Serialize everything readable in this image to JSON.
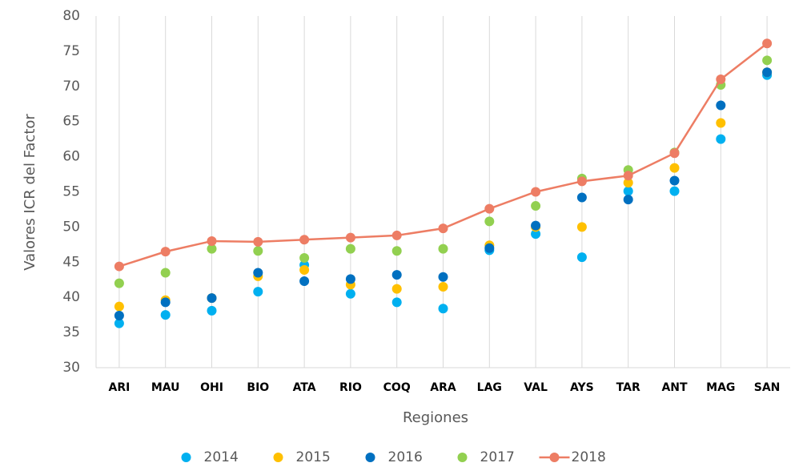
{
  "chart_data": {
    "type": "line",
    "x_label": "Regiones",
    "y_label": "Valores ICR del Factor",
    "categories": [
      "ARI",
      "MAU",
      "OHI",
      "BIO",
      "ATA",
      "RIO",
      "COQ",
      "ARA",
      "LAG",
      "VAL",
      "AYS",
      "TAR",
      "ANT",
      "MAG",
      "SAN"
    ],
    "ylim": [
      30,
      80
    ],
    "yticks": [
      30,
      35,
      40,
      45,
      50,
      55,
      60,
      65,
      70,
      75,
      80
    ],
    "grid": "vertical",
    "legend": "bottom",
    "series": [
      {
        "name": "2014",
        "color": "#00b0f0",
        "line": false,
        "values": [
          36.3,
          37.5,
          38.1,
          40.8,
          44.6,
          40.5,
          39.3,
          38.4,
          46.7,
          49.0,
          45.7,
          55.1,
          55.1,
          62.5,
          71.6
        ]
      },
      {
        "name": "2015",
        "color": "#ffc000",
        "line": false,
        "values": [
          38.7,
          39.6,
          39.9,
          43.0,
          43.9,
          41.8,
          41.2,
          41.5,
          47.4,
          50.0,
          50.0,
          56.3,
          58.4,
          64.8,
          72.0
        ]
      },
      {
        "name": "2016",
        "color": "#0070c0",
        "line": false,
        "values": [
          37.4,
          39.3,
          39.9,
          43.5,
          42.3,
          42.6,
          43.2,
          42.9,
          47.0,
          50.2,
          54.2,
          53.9,
          56.6,
          67.3,
          72.0
        ]
      },
      {
        "name": "2017",
        "color": "#92d050",
        "line": false,
        "values": [
          42.0,
          43.5,
          46.9,
          46.6,
          45.6,
          46.9,
          46.6,
          46.9,
          50.8,
          53.0,
          56.9,
          58.1,
          60.6,
          70.2,
          73.7
        ]
      },
      {
        "name": "2018",
        "color": "#ed7d64",
        "line": true,
        "values": [
          44.4,
          46.5,
          48.0,
          47.9,
          48.2,
          48.5,
          48.8,
          49.8,
          52.6,
          55.0,
          56.5,
          57.3,
          60.5,
          71.0,
          76.1
        ]
      }
    ]
  }
}
